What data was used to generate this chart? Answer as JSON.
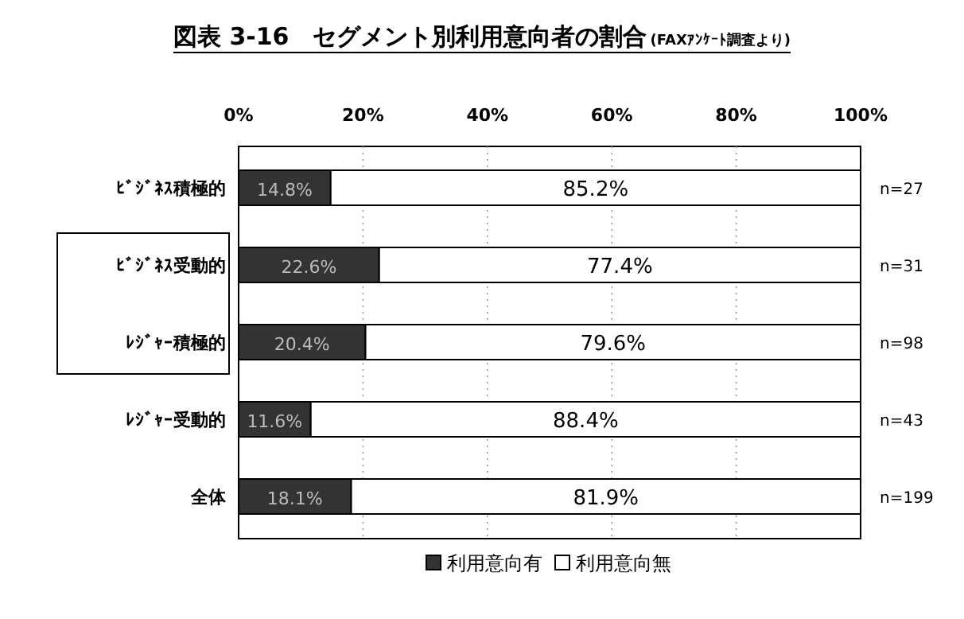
{
  "chart_data": {
    "type": "bar",
    "orientation": "horizontal",
    "stacked": true,
    "title": "図表 3-16　セグメント別利用意向者の割合",
    "subtitle": "(FAXｱﾝｹｰﾄ調査より)",
    "categories": [
      "ﾋﾞｼﾞﾈｽ積極的",
      "ﾋﾞｼﾞﾈｽ受動的",
      "ﾚｼﾞｬｰ積極的",
      "ﾚｼﾞｬｰ受動的",
      "全体"
    ],
    "series": [
      {
        "name": "利用意向有",
        "color": "#333333",
        "values": [
          14.8,
          22.6,
          20.4,
          11.6,
          18.1
        ],
        "value_labels": [
          "14.8%",
          "22.6%",
          "20.4%",
          "11.6%",
          "18.1%"
        ]
      },
      {
        "name": "利用意向無",
        "color": "#ffffff",
        "values": [
          85.2,
          77.4,
          79.6,
          88.4,
          81.9
        ],
        "value_labels": [
          "85.2%",
          "77.4%",
          "79.6%",
          "88.4%",
          "81.9%"
        ]
      }
    ],
    "xlim": [
      0,
      100
    ],
    "xticks": [
      {
        "value": 0,
        "label": "0%"
      },
      {
        "value": 20,
        "label": "20%"
      },
      {
        "value": 40,
        "label": "40%"
      },
      {
        "value": 60,
        "label": "60%"
      },
      {
        "value": 80,
        "label": "80%"
      },
      {
        "value": 100,
        "label": "100%"
      }
    ],
    "grid": "x",
    "legend": "bottom",
    "annotations": [
      "n=27",
      "n=31",
      "n=98",
      "n=43",
      "n=199"
    ]
  }
}
